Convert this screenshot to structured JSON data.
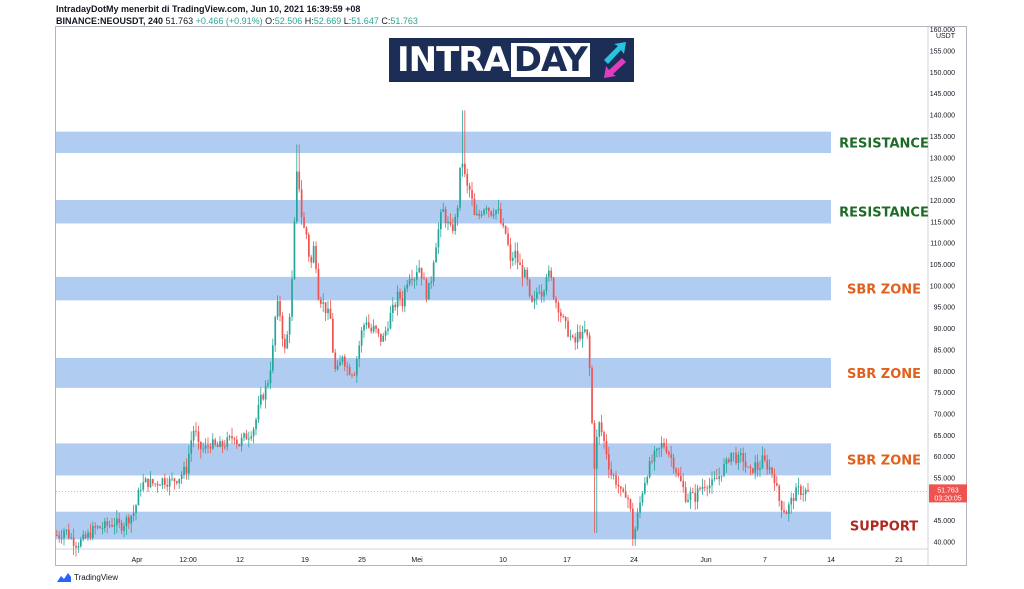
{
  "header": {
    "line1": "IntradayDotMy menerbit di TradingView.com, Jun 10, 2021 16:39:59 +08",
    "symbol": "BINANCE:NEOUSDT, 240",
    "price": "51.763",
    "change": "+0.466 (+0.91%)",
    "o_label": "O:",
    "o_value": "52.506",
    "h_label": "H:",
    "h_value": "52.669",
    "l_label": "L:",
    "l_value": "51.647",
    "c_label": "C:",
    "c_value": "51.763"
  },
  "logo": {
    "part1": "INTRA",
    "part2": "DAY"
  },
  "footer": {
    "brand": "TradingView"
  },
  "colors": {
    "up": "#26a69a",
    "down": "#ef5350",
    "zone": "#a7c7ee",
    "resistance": "#1e6b28",
    "sbr": "#e0601c",
    "support": "#b0271e"
  },
  "chart_data": {
    "type": "candlestick",
    "currency": "USDT",
    "y_ticks": [
      "40.000",
      "45.000",
      "50.000",
      "55.000",
      "60.000",
      "65.000",
      "70.000",
      "75.000",
      "80.000",
      "85.000",
      "90.000",
      "95.000",
      "100.000",
      "105.000",
      "110.000",
      "115.000",
      "120.000",
      "125.000",
      "130.000",
      "135.000",
      "140.000",
      "145.000",
      "150.000",
      "155.000",
      "160.000"
    ],
    "ylim": [
      38.5,
      160
    ],
    "x_ticks": [
      "Apr",
      "12:00",
      "12",
      "19",
      "25",
      "Mei",
      "10",
      "17",
      "24",
      "Jun",
      "7",
      "14",
      "21"
    ],
    "last_price": {
      "value": 51.763,
      "label": "51.763",
      "countdown": "03:20:05"
    },
    "zones": [
      {
        "label": "RESISTANCE",
        "low": 131,
        "high": 136,
        "kind": "resistance"
      },
      {
        "label": "RESISTANCE",
        "low": 114.5,
        "high": 120,
        "kind": "resistance"
      },
      {
        "label": "SBR ZONE",
        "low": 96.5,
        "high": 102,
        "kind": "sbr"
      },
      {
        "label": "SBR ZONE",
        "low": 76,
        "high": 83,
        "kind": "sbr"
      },
      {
        "label": "SBR ZONE",
        "low": 55.5,
        "high": 63,
        "kind": "sbr"
      },
      {
        "label": "SUPPORT",
        "low": 40.5,
        "high": 47,
        "kind": "support"
      }
    ],
    "price_path": [
      [
        0,
        41.5
      ],
      [
        6,
        41.5
      ],
      [
        10,
        43
      ],
      [
        16,
        41
      ],
      [
        22,
        39.5
      ],
      [
        30,
        40.5
      ],
      [
        40,
        43
      ],
      [
        50,
        43.5
      ],
      [
        60,
        44.5
      ],
      [
        66,
        43.5
      ],
      [
        72,
        45
      ],
      [
        80,
        47
      ],
      [
        86,
        53
      ],
      [
        92,
        54
      ],
      [
        100,
        53.5
      ],
      [
        108,
        54.5
      ],
      [
        116,
        54
      ],
      [
        124,
        55
      ],
      [
        132,
        57
      ],
      [
        136,
        63
      ],
      [
        140,
        67
      ],
      [
        144,
        62
      ],
      [
        150,
        61.5
      ],
      [
        156,
        63
      ],
      [
        162,
        62
      ],
      [
        168,
        62.5
      ],
      [
        174,
        63.5
      ],
      [
        180,
        65
      ],
      [
        184,
        62.5
      ],
      [
        188,
        64
      ],
      [
        194,
        65
      ],
      [
        200,
        67
      ],
      [
        206,
        73
      ],
      [
        210,
        75
      ],
      [
        214,
        78
      ],
      [
        218,
        84
      ],
      [
        222,
        96
      ],
      [
        226,
        93
      ],
      [
        230,
        84
      ],
      [
        234,
        90
      ],
      [
        238,
        102
      ],
      [
        242,
        126
      ],
      [
        245,
        123
      ],
      [
        248,
        114
      ],
      [
        252,
        112
      ],
      [
        256,
        104
      ],
      [
        260,
        110
      ],
      [
        264,
        98
      ],
      [
        268,
        96
      ],
      [
        272,
        94
      ],
      [
        276,
        92
      ],
      [
        280,
        80
      ],
      [
        284,
        80
      ],
      [
        288,
        84
      ],
      [
        292,
        81
      ],
      [
        296,
        80
      ],
      [
        300,
        80
      ],
      [
        304,
        85
      ],
      [
        308,
        90
      ],
      [
        312,
        92
      ],
      [
        316,
        89
      ],
      [
        320,
        90
      ],
      [
        324,
        88
      ],
      [
        328,
        87
      ],
      [
        332,
        90
      ],
      [
        336,
        93
      ],
      [
        340,
        95
      ],
      [
        344,
        98
      ],
      [
        348,
        96
      ],
      [
        352,
        101
      ],
      [
        356,
        103
      ],
      [
        360,
        102
      ],
      [
        364,
        105
      ],
      [
        368,
        102
      ],
      [
        372,
        98
      ],
      [
        376,
        100
      ],
      [
        380,
        108
      ],
      [
        384,
        113
      ],
      [
        388,
        118
      ],
      [
        392,
        115
      ],
      [
        396,
        113
      ],
      [
        400,
        114
      ],
      [
        404,
        120
      ],
      [
        406,
        128
      ],
      [
        408,
        129
      ],
      [
        412,
        123
      ],
      [
        416,
        122
      ],
      [
        420,
        116
      ],
      [
        424,
        116
      ],
      [
        428,
        118
      ],
      [
        432,
        119
      ],
      [
        436,
        117
      ],
      [
        440,
        118
      ],
      [
        444,
        117
      ],
      [
        448,
        113
      ],
      [
        452,
        112
      ],
      [
        456,
        105
      ],
      [
        460,
        108
      ],
      [
        464,
        105
      ],
      [
        468,
        103
      ],
      [
        472,
        102
      ],
      [
        476,
        95
      ],
      [
        480,
        96
      ],
      [
        484,
        100
      ],
      [
        488,
        98
      ],
      [
        492,
        103
      ],
      [
        496,
        102
      ],
      [
        500,
        97
      ],
      [
        504,
        95
      ],
      [
        508,
        92
      ],
      [
        512,
        90
      ],
      [
        516,
        88
      ],
      [
        520,
        86
      ],
      [
        524,
        89
      ],
      [
        528,
        88
      ],
      [
        532,
        90
      ],
      [
        536,
        78
      ],
      [
        538,
        65
      ],
      [
        540,
        58
      ],
      [
        544,
        68
      ],
      [
        548,
        65
      ],
      [
        552,
        61
      ],
      [
        556,
        56
      ],
      [
        560,
        55
      ],
      [
        564,
        53
      ],
      [
        568,
        50
      ],
      [
        572,
        52
      ],
      [
        576,
        47
      ],
      [
        578,
        41
      ],
      [
        580,
        42
      ],
      [
        584,
        47
      ],
      [
        588,
        52
      ],
      [
        592,
        56
      ],
      [
        596,
        58
      ],
      [
        600,
        60
      ],
      [
        604,
        61
      ],
      [
        608,
        63
      ],
      [
        612,
        62
      ],
      [
        616,
        60
      ],
      [
        620,
        58
      ],
      [
        624,
        55
      ],
      [
        628,
        53
      ],
      [
        632,
        50
      ],
      [
        636,
        51
      ],
      [
        640,
        50
      ],
      [
        644,
        52
      ],
      [
        648,
        53
      ],
      [
        652,
        54
      ],
      [
        656,
        53
      ],
      [
        660,
        54
      ],
      [
        664,
        55
      ],
      [
        668,
        57
      ],
      [
        672,
        58
      ],
      [
        676,
        61
      ],
      [
        680,
        60
      ],
      [
        684,
        59
      ],
      [
        688,
        60
      ],
      [
        692,
        57
      ],
      [
        696,
        56
      ],
      [
        700,
        58
      ],
      [
        704,
        57
      ],
      [
        708,
        59
      ],
      [
        712,
        58
      ],
      [
        716,
        57
      ],
      [
        720,
        55
      ],
      [
        724,
        50
      ],
      [
        728,
        48
      ],
      [
        732,
        47
      ],
      [
        736,
        49
      ],
      [
        740,
        51
      ],
      [
        744,
        52
      ],
      [
        748,
        51.8
      ],
      [
        752,
        51.763
      ]
    ]
  }
}
